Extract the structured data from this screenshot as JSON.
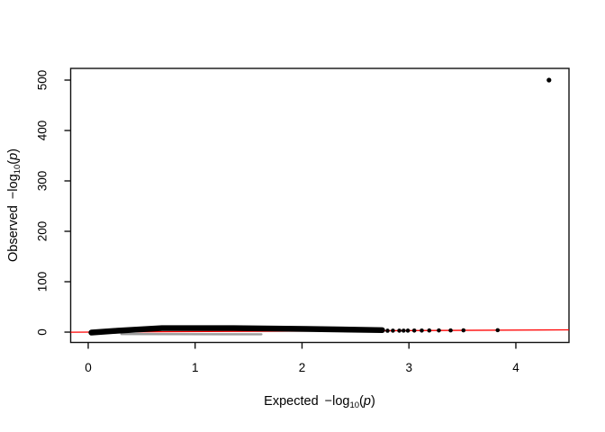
{
  "page": {
    "background": "#ffffff"
  },
  "figure": {
    "chart_data": {
      "type": "scatter",
      "subtype": "qq-plot",
      "title": "",
      "xlabel": "Expected −log10(p)",
      "ylabel": "Observed −log10(p)",
      "xlabel_parts": {
        "word": "Expected",
        "func": "−log",
        "sub": "10",
        "open": "(",
        "variable": "p",
        "close": ")"
      },
      "ylabel_parts": {
        "word": "Observed",
        "func": "−log",
        "sub": "10",
        "open": "(",
        "variable": "p",
        "close": ")"
      },
      "xlim": [
        -0.164,
        4.497
      ],
      "ylim": [
        -20.5,
        523.2
      ],
      "x_ticks": [
        0,
        1,
        2,
        3,
        4
      ],
      "y_ticks": [
        0,
        100,
        200,
        300,
        400,
        500
      ],
      "grid": false,
      "legend": false,
      "frame_color": "#111111",
      "text_color": "#000000",
      "point_color": "#000000",
      "reference_line": {
        "type": "identity y = x",
        "color": "#ff0000"
      },
      "dense_band": {
        "description": "thousands of overlapping points, observed ≈ expected, from expected ≈ 0 to ≈ 2.75",
        "path": [
          {
            "x": 0.03,
            "y": -0.9
          },
          {
            "x": 0.27,
            "y": 2.7
          },
          {
            "x": 0.69,
            "y": 8.0
          },
          {
            "x": 1.36,
            "y": 8.0
          },
          {
            "x": 2.04,
            "y": 6.3
          },
          {
            "x": 2.75,
            "y": 3.9
          }
        ],
        "spread_units": 11.5,
        "lower_scatter": [
          {
            "x": 0.31,
            "y": -3.9
          },
          {
            "x": 1.62,
            "y": -4.3
          }
        ],
        "lower_spread_units": 4.3
      },
      "tail_points": [
        {
          "x": 2.75,
          "y": 2.75
        },
        {
          "x": 2.8,
          "y": 2.8
        },
        {
          "x": 2.85,
          "y": 2.85
        },
        {
          "x": 2.91,
          "y": 2.91
        },
        {
          "x": 2.95,
          "y": 2.95
        },
        {
          "x": 2.99,
          "y": 2.99
        },
        {
          "x": 3.05,
          "y": 3.05
        },
        {
          "x": 3.12,
          "y": 3.12
        },
        {
          "x": 3.19,
          "y": 3.19
        },
        {
          "x": 3.28,
          "y": 3.28
        },
        {
          "x": 3.39,
          "y": 3.39
        },
        {
          "x": 3.51,
          "y": 3.51
        },
        {
          "x": 3.83,
          "y": 3.83
        }
      ],
      "outlier": {
        "x": 4.31,
        "y": 500
      }
    }
  }
}
